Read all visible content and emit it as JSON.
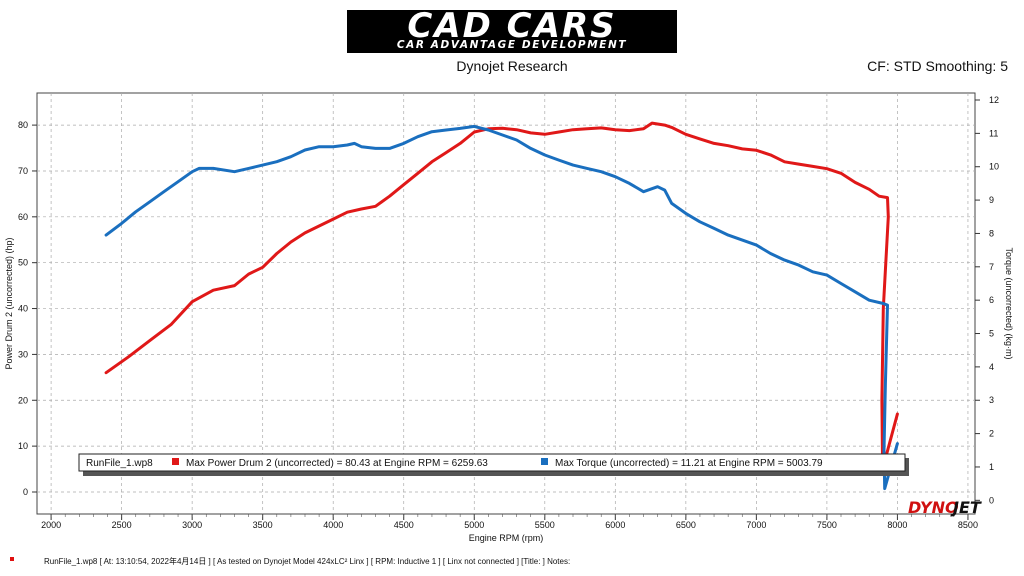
{
  "header": {
    "logo_main": "CAD CARS",
    "logo_sub": "CAR ADVANTAGE DEVELOPMENT",
    "subtitle": "Dynojet Research",
    "cf_info": "CF: STD Smoothing: 5"
  },
  "footer": {
    "text": "RunFile_1.wp8  [  At:  13:10:54,  2022年4月14日 ] [ As tested on Dynojet Model 424xLC² Linx ] [ RPM: Inductive 1 ] [ Linx not connected ] [Title: ]   Notes:"
  },
  "chart_data": {
    "type": "line",
    "xlabel": "Engine RPM (rpm)",
    "ylabel": "Power Drum 2 (uncorrected) (hp)",
    "y2label": "Torque (uncorrected) (kg·m)",
    "xlim": [
      1900,
      8550
    ],
    "ylim": [
      -4.8,
      87
    ],
    "y2lim": [
      -0.41,
      12.21
    ],
    "x_ticks": [
      2000,
      2500,
      3000,
      3500,
      4000,
      4500,
      5000,
      5500,
      6000,
      6500,
      7000,
      7500,
      8000,
      8500
    ],
    "y_ticks": [
      0,
      10,
      20,
      30,
      40,
      50,
      60,
      70,
      80
    ],
    "y2_ticks": [
      0,
      1,
      2,
      3,
      4,
      5,
      6,
      7,
      8,
      9,
      10,
      11,
      12
    ],
    "grid": true,
    "legend_position": "bottom-left",
    "legend_run": "RunFile_1.wp8",
    "series": [
      {
        "name": "Max Power Drum 2 (uncorrected) = 80.43 at Engine RPM = 6259.63",
        "color": "#e01818",
        "axis": "left",
        "points": [
          [
            2390,
            26
          ],
          [
            2550,
            29.5
          ],
          [
            2700,
            33
          ],
          [
            2850,
            36.5
          ],
          [
            3000,
            41.5
          ],
          [
            3150,
            44
          ],
          [
            3300,
            45
          ],
          [
            3400,
            47.5
          ],
          [
            3500,
            49
          ],
          [
            3600,
            52
          ],
          [
            3700,
            54.5
          ],
          [
            3800,
            56.5
          ],
          [
            3900,
            58
          ],
          [
            4000,
            59.5
          ],
          [
            4100,
            61
          ],
          [
            4200,
            61.7
          ],
          [
            4300,
            62.3
          ],
          [
            4400,
            64.5
          ],
          [
            4500,
            67
          ],
          [
            4600,
            69.5
          ],
          [
            4700,
            72
          ],
          [
            4800,
            74
          ],
          [
            4900,
            76
          ],
          [
            5000,
            78.5
          ],
          [
            5100,
            79.2
          ],
          [
            5200,
            79.3
          ],
          [
            5300,
            79
          ],
          [
            5400,
            78.3
          ],
          [
            5500,
            78
          ],
          [
            5600,
            78.5
          ],
          [
            5700,
            79
          ],
          [
            5800,
            79.2
          ],
          [
            5900,
            79.4
          ],
          [
            6000,
            79
          ],
          [
            6100,
            78.8
          ],
          [
            6200,
            79.2
          ],
          [
            6260,
            80.43
          ],
          [
            6350,
            80
          ],
          [
            6400,
            79.5
          ],
          [
            6500,
            78
          ],
          [
            6600,
            77
          ],
          [
            6700,
            76
          ],
          [
            6800,
            75.5
          ],
          [
            6900,
            74.8
          ],
          [
            7000,
            74.5
          ],
          [
            7100,
            73.5
          ],
          [
            7200,
            72
          ],
          [
            7300,
            71.5
          ],
          [
            7400,
            71
          ],
          [
            7500,
            70.5
          ],
          [
            7600,
            69.5
          ],
          [
            7700,
            67.5
          ],
          [
            7800,
            66
          ],
          [
            7870,
            64.5
          ],
          [
            7930,
            64.2
          ],
          [
            7935,
            60
          ],
          [
            7900,
            40
          ],
          [
            7890,
            20
          ],
          [
            7895,
            5
          ],
          [
            8000,
            17
          ]
        ]
      },
      {
        "name": "Max Torque (uncorrected) = 11.21 at Engine RPM = 5003.79",
        "color": "#1a6fbf",
        "axis": "right",
        "points": [
          [
            2390,
            7.95
          ],
          [
            2500,
            8.3
          ],
          [
            2600,
            8.65
          ],
          [
            2700,
            8.95
          ],
          [
            2800,
            9.25
          ],
          [
            2900,
            9.55
          ],
          [
            3000,
            9.85
          ],
          [
            3050,
            9.95
          ],
          [
            3150,
            9.95
          ],
          [
            3300,
            9.85
          ],
          [
            3400,
            9.95
          ],
          [
            3500,
            10.05
          ],
          [
            3600,
            10.15
          ],
          [
            3700,
            10.3
          ],
          [
            3800,
            10.5
          ],
          [
            3900,
            10.6
          ],
          [
            4000,
            10.6
          ],
          [
            4100,
            10.65
          ],
          [
            4150,
            10.7
          ],
          [
            4200,
            10.6
          ],
          [
            4300,
            10.55
          ],
          [
            4400,
            10.55
          ],
          [
            4500,
            10.7
          ],
          [
            4600,
            10.9
          ],
          [
            4700,
            11.05
          ],
          [
            4800,
            11.1
          ],
          [
            4900,
            11.15
          ],
          [
            5000,
            11.21
          ],
          [
            5100,
            11.1
          ],
          [
            5200,
            10.95
          ],
          [
            5300,
            10.8
          ],
          [
            5400,
            10.55
          ],
          [
            5500,
            10.35
          ],
          [
            5600,
            10.2
          ],
          [
            5700,
            10.05
          ],
          [
            5800,
            9.95
          ],
          [
            5900,
            9.85
          ],
          [
            6000,
            9.7
          ],
          [
            6100,
            9.5
          ],
          [
            6200,
            9.25
          ],
          [
            6300,
            9.4
          ],
          [
            6350,
            9.3
          ],
          [
            6400,
            8.9
          ],
          [
            6500,
            8.6
          ],
          [
            6600,
            8.35
          ],
          [
            6700,
            8.15
          ],
          [
            6800,
            7.95
          ],
          [
            6900,
            7.8
          ],
          [
            7000,
            7.65
          ],
          [
            7100,
            7.4
          ],
          [
            7200,
            7.2
          ],
          [
            7300,
            7.05
          ],
          [
            7400,
            6.85
          ],
          [
            7500,
            6.75
          ],
          [
            7600,
            6.5
          ],
          [
            7700,
            6.25
          ],
          [
            7800,
            6.0
          ],
          [
            7900,
            5.9
          ],
          [
            7930,
            5.85
          ],
          [
            7915,
            3.5
          ],
          [
            7905,
            1.5
          ],
          [
            7910,
            0.35
          ],
          [
            8000,
            1.7
          ]
        ]
      }
    ]
  }
}
